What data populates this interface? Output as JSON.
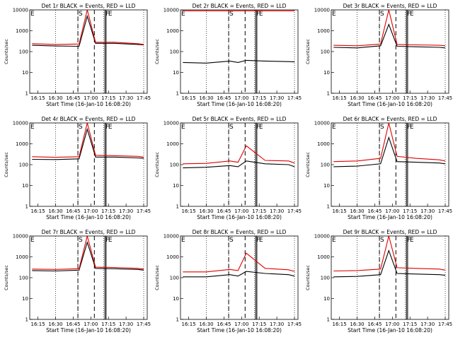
{
  "figure": {
    "panel_titles": [
      "Det 1r BLACK = Events, RED = LLD",
      "Det 2r BLACK = Events, RED = LLD",
      "Det 3r BLACK = Events, RED = LLD",
      "Det 4r BLACK = Events, RED = LLD",
      "Det 5r BLACK = Events, RED = LLD",
      "Det 6r BLACK = Events, RED = LLD",
      "Det 7r BLACK = Events, RED = LLD",
      "Det 8r BLACK = Events, RED = LLD",
      "Det 9r BLACK = Events, RED = LLD"
    ],
    "xlabel": "Start Time (16-Jan-10 16:08:20)",
    "ylabel": "Counts/sec",
    "x_tick_labels": [
      "16:15",
      "16:30",
      "16:45",
      "17:00",
      "17:15",
      "17:30",
      "17:45"
    ],
    "y_tick_labels": [
      "1",
      "10",
      "100",
      "1000",
      "10000"
    ],
    "marker_labels": [
      "E",
      "S",
      "F",
      "E"
    ],
    "colors": {
      "events": "#000000",
      "lld": "#e00000"
    }
  },
  "chart_data": [
    {
      "type": "line",
      "title": "Det 1r BLACK = Events, RED = LLD",
      "xlabel": "Start Time (16-Jan-10 16:08:20)",
      "ylabel": "Counts/sec",
      "x_range": [
        "16:08",
        "17:48"
      ],
      "ylim": [
        1,
        10000
      ],
      "y_scale": "log",
      "x": [
        "16:10",
        "16:30",
        "16:50",
        "16:57",
        "17:04",
        "17:20",
        "17:40",
        "17:45"
      ],
      "series": [
        {
          "name": "Events",
          "color": "#000000",
          "values": [
            200,
            185,
            180,
            5000,
            250,
            250,
            220,
            210
          ]
        },
        {
          "name": "LLD",
          "color": "#e00000",
          "values": [
            240,
            220,
            230,
            15000,
            280,
            280,
            240,
            220
          ]
        }
      ],
      "vlines_dotted": [
        "16:30",
        "16:49",
        "17:11",
        "17:45"
      ],
      "vlines_dashed": [
        "16:49",
        "17:03"
      ],
      "vlines_solid": [
        "17:12",
        "17:13"
      ]
    },
    {
      "type": "line",
      "title": "Det 2r BLACK = Events, RED = LLD",
      "xlabel": "Start Time (16-Jan-10 16:08:20)",
      "ylabel": "Counts/sec",
      "x_range": [
        "16:08",
        "17:48"
      ],
      "ylim": [
        1,
        10000
      ],
      "y_scale": "log",
      "x": [
        "16:10",
        "16:30",
        "16:50",
        "16:57",
        "17:04",
        "17:20",
        "17:40",
        "17:45"
      ],
      "series": [
        {
          "name": "Events",
          "color": "#000000",
          "values": [
            30,
            28,
            35,
            30,
            38,
            35,
            33,
            32
          ]
        },
        {
          "name": "LLD",
          "color": "#e00000",
          "values": [
            9000,
            9000,
            9000,
            9000,
            9000,
            9000,
            9000,
            9000
          ]
        }
      ],
      "vlines_dotted": [
        "16:30",
        "16:49",
        "17:11",
        "17:45"
      ],
      "vlines_dashed": [
        "16:49",
        "17:03"
      ],
      "vlines_solid": [
        "17:12",
        "17:13"
      ]
    },
    {
      "type": "line",
      "title": "Det 3r BLACK = Events, RED = LLD",
      "xlabel": "Start Time (16-Jan-10 16:08:20)",
      "ylabel": "Counts/sec",
      "x_range": [
        "16:08",
        "17:48"
      ],
      "ylim": [
        1,
        10000
      ],
      "y_scale": "log",
      "x": [
        "16:10",
        "16:30",
        "16:50",
        "16:57",
        "17:04",
        "17:20",
        "17:40",
        "17:45"
      ],
      "series": [
        {
          "name": "Events",
          "color": "#000000",
          "values": [
            160,
            150,
            190,
            2000,
            180,
            170,
            160,
            150
          ]
        },
        {
          "name": "LLD",
          "color": "#e00000",
          "values": [
            200,
            190,
            230,
            15000,
            220,
            210,
            200,
            190
          ]
        }
      ],
      "vlines_dotted": [
        "16:30",
        "16:49",
        "17:11",
        "17:45"
      ],
      "vlines_dashed": [
        "16:49",
        "17:03"
      ],
      "vlines_solid": [
        "17:12",
        "17:13"
      ]
    },
    {
      "type": "line",
      "title": "Det 4r BLACK = Events, RED = LLD",
      "xlabel": "Start Time (16-Jan-10 16:08:20)",
      "ylabel": "Counts/sec",
      "x_range": [
        "16:08",
        "17:48"
      ],
      "ylim": [
        1,
        10000
      ],
      "y_scale": "log",
      "x": [
        "16:10",
        "16:30",
        "16:50",
        "16:57",
        "17:04",
        "17:20",
        "17:40",
        "17:45"
      ],
      "series": [
        {
          "name": "Events",
          "color": "#000000",
          "values": [
            180,
            175,
            190,
            5000,
            230,
            230,
            210,
            200
          ]
        },
        {
          "name": "LLD",
          "color": "#e00000",
          "values": [
            240,
            225,
            240,
            15000,
            280,
            270,
            250,
            230
          ]
        }
      ],
      "vlines_dotted": [
        "16:30",
        "16:49",
        "17:11",
        "17:45"
      ],
      "vlines_dashed": [
        "16:49",
        "17:03"
      ],
      "vlines_solid": [
        "17:12",
        "17:13"
      ]
    },
    {
      "type": "line",
      "title": "Det 5r BLACK = Events, RED = LLD",
      "xlabel": "Start Time (16-Jan-10 16:08:20)",
      "ylabel": "Counts/sec",
      "x_range": [
        "16:08",
        "17:48"
      ],
      "ylim": [
        1,
        10000
      ],
      "y_scale": "log",
      "x": [
        "16:10",
        "16:30",
        "16:50",
        "16:57",
        "17:04",
        "17:20",
        "17:40",
        "17:45"
      ],
      "series": [
        {
          "name": "Events",
          "color": "#000000",
          "values": [
            70,
            75,
            90,
            80,
            150,
            110,
            100,
            80
          ]
        },
        {
          "name": "LLD",
          "color": "#e00000",
          "values": [
            110,
            115,
            150,
            130,
            800,
            160,
            150,
            120
          ]
        }
      ],
      "vlines_dotted": [
        "16:30",
        "16:49",
        "17:11",
        "17:45"
      ],
      "vlines_dashed": [
        "16:49",
        "17:03"
      ],
      "vlines_solid": [
        "17:12",
        "17:13"
      ]
    },
    {
      "type": "line",
      "title": "Det 6r BLACK = Events, RED = LLD",
      "xlabel": "Start Time (16-Jan-10 16:08:20)",
      "ylabel": "Counts/sec",
      "x_range": [
        "16:08",
        "17:48"
      ],
      "ylim": [
        1,
        10000
      ],
      "y_scale": "log",
      "x": [
        "16:10",
        "16:30",
        "16:50",
        "16:57",
        "17:04",
        "17:20",
        "17:40",
        "17:45"
      ],
      "series": [
        {
          "name": "Events",
          "color": "#000000",
          "values": [
            80,
            85,
            110,
            2000,
            140,
            130,
            120,
            110
          ]
        },
        {
          "name": "LLD",
          "color": "#e00000",
          "values": [
            140,
            150,
            200,
            15000,
            250,
            200,
            170,
            150
          ]
        }
      ],
      "vlines_dotted": [
        "16:30",
        "16:49",
        "17:11",
        "17:45"
      ],
      "vlines_dashed": [
        "16:49",
        "17:03"
      ],
      "vlines_solid": [
        "17:12",
        "17:13"
      ]
    },
    {
      "type": "line",
      "title": "Det 7r BLACK = Events, RED = LLD",
      "xlabel": "Start Time (16-Jan-10 16:08:20)",
      "ylabel": "Counts/sec",
      "x_range": [
        "16:08",
        "17:48"
      ],
      "ylim": [
        1,
        10000
      ],
      "y_scale": "log",
      "x": [
        "16:10",
        "16:30",
        "16:50",
        "16:57",
        "17:04",
        "17:20",
        "17:40",
        "17:45"
      ],
      "series": [
        {
          "name": "Events",
          "color": "#000000",
          "values": [
            220,
            210,
            230,
            5000,
            280,
            270,
            250,
            230
          ]
        },
        {
          "name": "LLD",
          "color": "#e00000",
          "values": [
            260,
            250,
            270,
            15000,
            320,
            310,
            280,
            260
          ]
        }
      ],
      "vlines_dotted": [
        "16:30",
        "16:49",
        "17:11",
        "17:45"
      ],
      "vlines_dashed": [
        "16:49",
        "17:03"
      ],
      "vlines_solid": [
        "17:12",
        "17:13"
      ]
    },
    {
      "type": "line",
      "title": "Det 8r BLACK = Events, RED = LLD",
      "xlabel": "Start Time (16-Jan-10 16:08:20)",
      "ylabel": "Counts/sec",
      "x_range": [
        "16:08",
        "17:48"
      ],
      "ylim": [
        1,
        10000
      ],
      "y_scale": "log",
      "x": [
        "16:10",
        "16:30",
        "16:50",
        "16:57",
        "17:04",
        "17:20",
        "17:40",
        "17:45"
      ],
      "series": [
        {
          "name": "Events",
          "color": "#000000",
          "values": [
            110,
            110,
            140,
            120,
            200,
            160,
            140,
            120
          ]
        },
        {
          "name": "LLD",
          "color": "#e00000",
          "values": [
            190,
            190,
            250,
            220,
            1500,
            280,
            240,
            200
          ]
        }
      ],
      "vlines_dotted": [
        "16:30",
        "16:49",
        "17:11",
        "17:45"
      ],
      "vlines_dashed": [
        "16:49",
        "17:03"
      ],
      "vlines_solid": [
        "17:12",
        "17:13"
      ]
    },
    {
      "type": "line",
      "title": "Det 9r BLACK = Events, RED = LLD",
      "xlabel": "Start Time (16-Jan-10 16:08:20)",
      "ylabel": "Counts/sec",
      "x_range": [
        "16:08",
        "17:48"
      ],
      "ylim": [
        1,
        10000
      ],
      "y_scale": "log",
      "x": [
        "16:10",
        "16:30",
        "16:50",
        "16:57",
        "17:04",
        "17:20",
        "17:40",
        "17:45"
      ],
      "series": [
        {
          "name": "Events",
          "color": "#000000",
          "values": [
            110,
            115,
            140,
            2000,
            160,
            150,
            140,
            130
          ]
        },
        {
          "name": "LLD",
          "color": "#e00000",
          "values": [
            210,
            220,
            260,
            15000,
            300,
            280,
            260,
            230
          ]
        }
      ],
      "vlines_dotted": [
        "16:30",
        "16:49",
        "17:11",
        "17:45"
      ],
      "vlines_dashed": [
        "16:49",
        "17:03"
      ],
      "vlines_solid": [
        "17:12",
        "17:13"
      ]
    }
  ]
}
